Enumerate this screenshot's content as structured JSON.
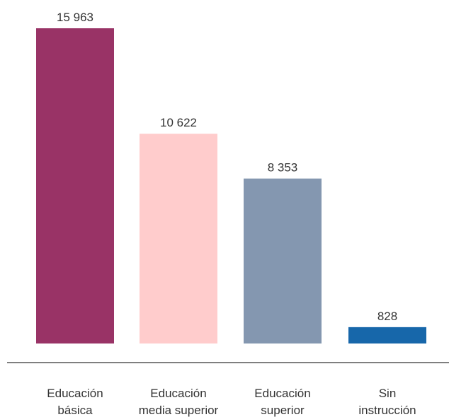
{
  "chart_data": {
    "type": "bar",
    "categories": [
      [
        "Educación",
        "básica"
      ],
      [
        "Educación",
        "media superior"
      ],
      [
        "Educación",
        "superior"
      ],
      [
        "Sin",
        "instrucción"
      ]
    ],
    "values": [
      15963,
      10622,
      8353,
      828
    ],
    "value_labels": [
      "15 963",
      "10 622",
      "8 353",
      "828"
    ],
    "colors": [
      "#993366",
      "#FFCCCC",
      "#8497B0",
      "#1767AA"
    ],
    "title": "",
    "xlabel": "",
    "ylabel": "",
    "ylim": [
      0,
      15963
    ],
    "grid": false,
    "legend": "none"
  }
}
